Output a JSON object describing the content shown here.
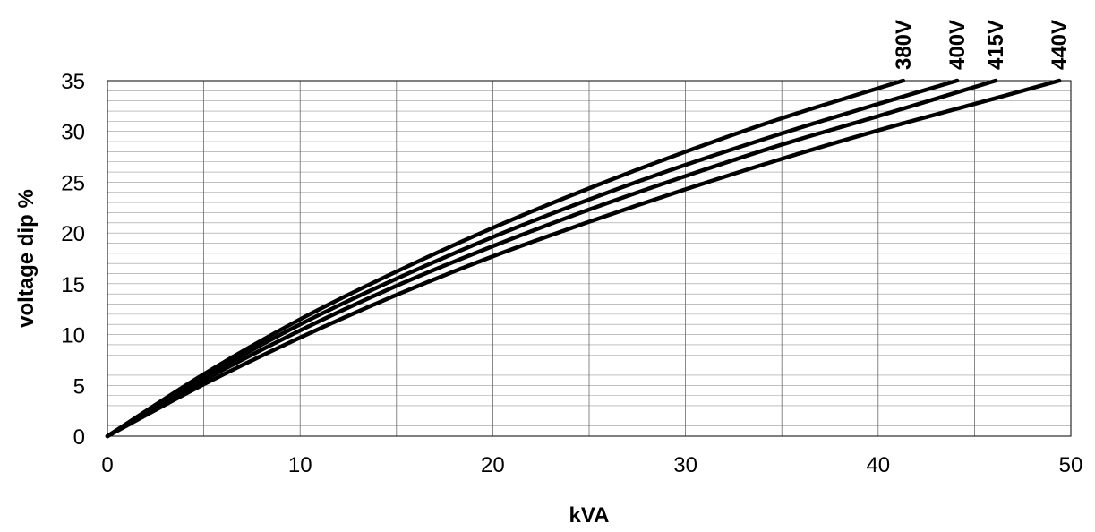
{
  "chart_data": {
    "type": "line",
    "title": "",
    "xlabel": "kVA",
    "ylabel": "voltage dip %",
    "xlim": [
      0,
      50
    ],
    "ylim": [
      0,
      35
    ],
    "x_ticks": [
      0,
      10,
      20,
      30,
      40,
      50
    ],
    "y_ticks": [
      0,
      5,
      10,
      15,
      20,
      25,
      30,
      35
    ],
    "grid": true,
    "legend": "series labels at top ends of curves",
    "line_color": "#000000",
    "series": [
      {
        "name": "380V",
        "x": [
          0,
          5,
          10,
          15,
          20,
          25,
          30,
          35,
          41.3
        ],
        "y": [
          0,
          6.1,
          11.5,
          16.2,
          20.5,
          24.4,
          28.0,
          31.3,
          35
        ]
      },
      {
        "name": "400V",
        "x": [
          0,
          5,
          10,
          15,
          20,
          25,
          30,
          35,
          40,
          44.1
        ],
        "y": [
          0,
          5.8,
          11.0,
          15.5,
          19.6,
          23.3,
          26.7,
          29.8,
          32.7,
          35
        ]
      },
      {
        "name": "415V",
        "x": [
          0,
          5,
          10,
          15,
          20,
          25,
          30,
          35,
          40,
          46.1
        ],
        "y": [
          0,
          5.5,
          10.4,
          14.8,
          18.7,
          22.3,
          25.6,
          28.7,
          31.5,
          35
        ]
      },
      {
        "name": "440V",
        "x": [
          0,
          5,
          10,
          15,
          20,
          25,
          30,
          35,
          40,
          45,
          49.4
        ],
        "y": [
          0,
          5.1,
          9.7,
          13.9,
          17.7,
          21.1,
          24.3,
          27.3,
          30.1,
          32.7,
          35
        ]
      }
    ]
  }
}
